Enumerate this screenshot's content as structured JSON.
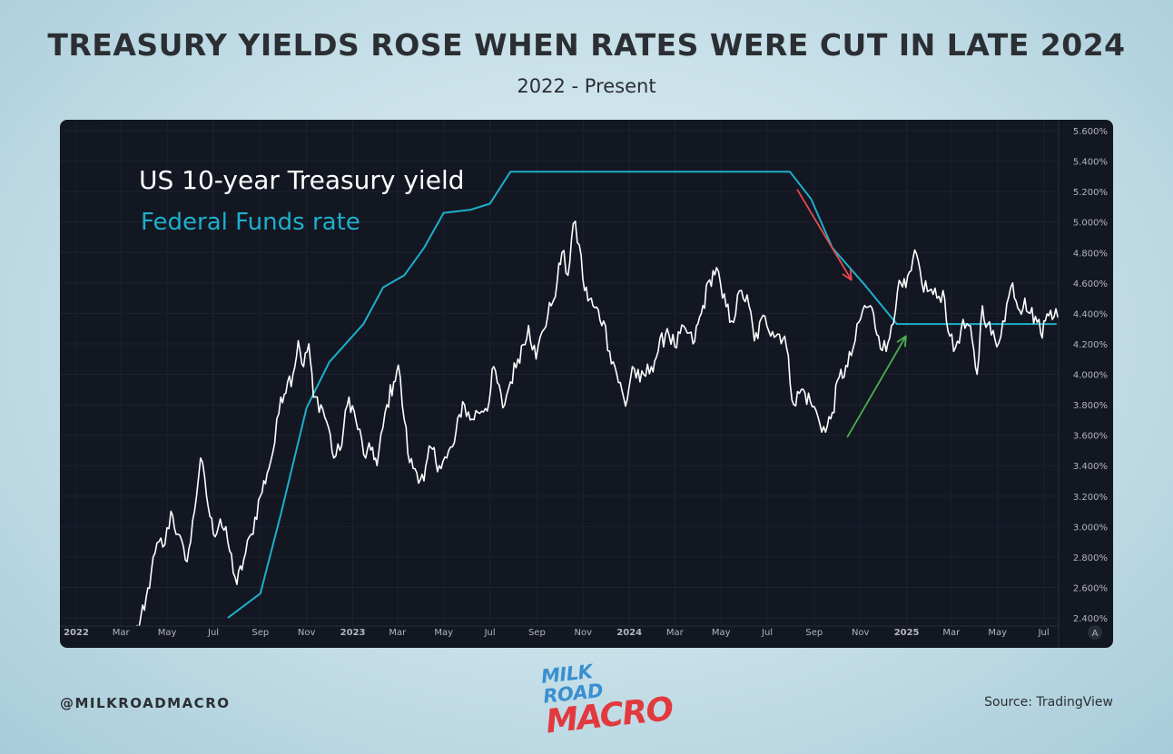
{
  "header": {
    "title": "TREASURY YIELDS ROSE WHEN RATES WERE CUT IN LATE 2024",
    "subtitle": "2022 - Present"
  },
  "footer": {
    "handle": "@MILKROADMACRO",
    "source": "Source: TradingView",
    "logo_top": "MILK ROAD",
    "logo_bottom": "MACRO"
  },
  "colors": {
    "background": "#131722",
    "yield_line": "#ffffff",
    "fed_line": "#1cb0cc",
    "down_arrow": "#e84a4f",
    "up_arrow": "#4caf50",
    "axis_text": "#b2b5be"
  },
  "chart_data": {
    "type": "line",
    "x_range": [
      "2022-01-01",
      "2025-08-10"
    ],
    "ylim": [
      2.4,
      5.6
    ],
    "y_ticks": [
      "5.600%",
      "5.400%",
      "5.200%",
      "5.000%",
      "4.800%",
      "4.600%",
      "4.400%",
      "4.200%",
      "4.000%",
      "3.800%",
      "3.600%",
      "3.400%",
      "3.200%",
      "3.000%",
      "2.800%",
      "2.600%",
      "2.400%"
    ],
    "x_ticks": [
      {
        "label": "2022",
        "date": "2022-01-01"
      },
      {
        "label": "Mar",
        "date": "2022-03-01"
      },
      {
        "label": "May",
        "date": "2022-05-01"
      },
      {
        "label": "Jul",
        "date": "2022-07-01"
      },
      {
        "label": "Sep",
        "date": "2022-09-01"
      },
      {
        "label": "Nov",
        "date": "2022-11-01"
      },
      {
        "label": "2023",
        "date": "2023-01-01"
      },
      {
        "label": "Mar",
        "date": "2023-03-01"
      },
      {
        "label": "May",
        "date": "2023-05-01"
      },
      {
        "label": "Jul",
        "date": "2023-07-01"
      },
      {
        "label": "Sep",
        "date": "2023-09-01"
      },
      {
        "label": "Nov",
        "date": "2023-11-01"
      },
      {
        "label": "2024",
        "date": "2024-01-01"
      },
      {
        "label": "Mar",
        "date": "2024-03-01"
      },
      {
        "label": "May",
        "date": "2024-05-01"
      },
      {
        "label": "Jul",
        "date": "2024-07-01"
      },
      {
        "label": "Sep",
        "date": "2024-09-01"
      },
      {
        "label": "Nov",
        "date": "2024-11-01"
      },
      {
        "label": "2025",
        "date": "2025-01-01"
      },
      {
        "label": "Mar",
        "date": "2025-03-01"
      },
      {
        "label": "May",
        "date": "2025-05-01"
      },
      {
        "label": "Jul",
        "date": "2025-07-01"
      }
    ],
    "grid": true,
    "legend_position": "top-left",
    "corner_badge": "A",
    "series": [
      {
        "name": "US 10-year Treasury yield",
        "color": "#ffffff",
        "points": [
          [
            "2022-03-20",
            2.3
          ],
          [
            "2022-04-01",
            2.45
          ],
          [
            "2022-04-10",
            2.7
          ],
          [
            "2022-04-20",
            2.9
          ],
          [
            "2022-04-28",
            2.88
          ],
          [
            "2022-05-06",
            3.1
          ],
          [
            "2022-05-15",
            2.95
          ],
          [
            "2022-05-25",
            2.78
          ],
          [
            "2022-06-01",
            2.9
          ],
          [
            "2022-06-14",
            3.45
          ],
          [
            "2022-06-22",
            3.2
          ],
          [
            "2022-07-01",
            2.95
          ],
          [
            "2022-07-10",
            3.05
          ],
          [
            "2022-07-20",
            2.9
          ],
          [
            "2022-08-01",
            2.62
          ],
          [
            "2022-08-10",
            2.78
          ],
          [
            "2022-08-20",
            2.95
          ],
          [
            "2022-09-01",
            3.2
          ],
          [
            "2022-09-10",
            3.35
          ],
          [
            "2022-09-20",
            3.55
          ],
          [
            "2022-09-28",
            3.85
          ],
          [
            "2022-10-07",
            3.95
          ],
          [
            "2022-10-14",
            4.0
          ],
          [
            "2022-10-21",
            4.22
          ],
          [
            "2022-10-28",
            4.05
          ],
          [
            "2022-11-04",
            4.2
          ],
          [
            "2022-11-10",
            3.85
          ],
          [
            "2022-11-20",
            3.8
          ],
          [
            "2022-11-30",
            3.65
          ],
          [
            "2022-12-07",
            3.45
          ],
          [
            "2022-12-15",
            3.5
          ],
          [
            "2022-12-27",
            3.85
          ],
          [
            "2023-01-05",
            3.7
          ],
          [
            "2023-01-18",
            3.45
          ],
          [
            "2023-01-27",
            3.52
          ],
          [
            "2023-02-02",
            3.4
          ],
          [
            "2023-02-15",
            3.8
          ],
          [
            "2023-02-24",
            3.95
          ],
          [
            "2023-03-02",
            4.06
          ],
          [
            "2023-03-10",
            3.7
          ],
          [
            "2023-03-17",
            3.42
          ],
          [
            "2023-03-24",
            3.38
          ],
          [
            "2023-04-05",
            3.3
          ],
          [
            "2023-04-14",
            3.52
          ],
          [
            "2023-04-25",
            3.4
          ],
          [
            "2023-05-05",
            3.45
          ],
          [
            "2023-05-15",
            3.55
          ],
          [
            "2023-05-26",
            3.82
          ],
          [
            "2023-06-05",
            3.7
          ],
          [
            "2023-06-15",
            3.75
          ],
          [
            "2023-06-30",
            3.82
          ],
          [
            "2023-07-06",
            4.05
          ],
          [
            "2023-07-18",
            3.78
          ],
          [
            "2023-07-28",
            3.95
          ],
          [
            "2023-08-07",
            4.1
          ],
          [
            "2023-08-21",
            4.32
          ],
          [
            "2023-08-31",
            4.1
          ],
          [
            "2023-09-08",
            4.28
          ],
          [
            "2023-09-20",
            4.45
          ],
          [
            "2023-09-28",
            4.62
          ],
          [
            "2023-10-04",
            4.8
          ],
          [
            "2023-10-12",
            4.65
          ],
          [
            "2023-10-19",
            4.99
          ],
          [
            "2023-10-27",
            4.85
          ],
          [
            "2023-11-03",
            4.55
          ],
          [
            "2023-11-14",
            4.45
          ],
          [
            "2023-11-28",
            4.35
          ],
          [
            "2023-12-06",
            4.15
          ],
          [
            "2023-12-13",
            4.05
          ],
          [
            "2023-12-27",
            3.79
          ],
          [
            "2024-01-05",
            4.05
          ],
          [
            "2024-01-15",
            3.95
          ],
          [
            "2024-01-30",
            4.05
          ],
          [
            "2024-02-08",
            4.15
          ],
          [
            "2024-02-20",
            4.3
          ],
          [
            "2024-03-01",
            4.18
          ],
          [
            "2024-03-15",
            4.3
          ],
          [
            "2024-03-25",
            4.2
          ],
          [
            "2024-04-05",
            4.4
          ],
          [
            "2024-04-16",
            4.62
          ],
          [
            "2024-04-25",
            4.7
          ],
          [
            "2024-05-03",
            4.5
          ],
          [
            "2024-05-15",
            4.35
          ],
          [
            "2024-05-28",
            4.55
          ],
          [
            "2024-06-07",
            4.45
          ],
          [
            "2024-06-14",
            4.22
          ],
          [
            "2024-06-28",
            4.38
          ],
          [
            "2024-07-08",
            4.28
          ],
          [
            "2024-07-24",
            4.25
          ],
          [
            "2024-08-05",
            3.8
          ],
          [
            "2024-08-15",
            3.9
          ],
          [
            "2024-08-27",
            3.82
          ],
          [
            "2024-09-06",
            3.72
          ],
          [
            "2024-09-16",
            3.62
          ],
          [
            "2024-09-25",
            3.75
          ],
          [
            "2024-10-04",
            3.98
          ],
          [
            "2024-10-15",
            4.05
          ],
          [
            "2024-10-25",
            4.22
          ],
          [
            "2024-11-04",
            4.42
          ],
          [
            "2024-11-14",
            4.45
          ],
          [
            "2024-11-25",
            4.25
          ],
          [
            "2024-12-05",
            4.15
          ],
          [
            "2024-12-12",
            4.32
          ],
          [
            "2024-12-20",
            4.55
          ],
          [
            "2024-12-31",
            4.57
          ],
          [
            "2025-01-07",
            4.68
          ],
          [
            "2025-01-14",
            4.79
          ],
          [
            "2025-01-21",
            4.6
          ],
          [
            "2025-01-31",
            4.55
          ],
          [
            "2025-02-10",
            4.5
          ],
          [
            "2025-02-18",
            4.55
          ],
          [
            "2025-02-27",
            4.25
          ],
          [
            "2025-03-04",
            4.15
          ],
          [
            "2025-03-14",
            4.3
          ],
          [
            "2025-03-24",
            4.32
          ],
          [
            "2025-04-04",
            4.0
          ],
          [
            "2025-04-11",
            4.45
          ],
          [
            "2025-04-18",
            4.33
          ],
          [
            "2025-04-30",
            4.18
          ],
          [
            "2025-05-08",
            4.35
          ],
          [
            "2025-05-21",
            4.6
          ],
          [
            "2025-05-30",
            4.42
          ],
          [
            "2025-06-06",
            4.5
          ],
          [
            "2025-06-13",
            4.4
          ],
          [
            "2025-06-20",
            4.38
          ],
          [
            "2025-06-27",
            4.27
          ],
          [
            "2025-07-03",
            4.35
          ],
          [
            "2025-07-10",
            4.42
          ],
          [
            "2025-07-17",
            4.43
          ],
          [
            "2025-07-22",
            4.4
          ]
        ]
      },
      {
        "name": "Federal Funds rate",
        "color": "#1cb0cc",
        "points": [
          [
            "2022-07-20",
            2.4
          ],
          [
            "2022-09-01",
            2.56
          ],
          [
            "2022-09-28",
            3.08
          ],
          [
            "2022-11-01",
            3.78
          ],
          [
            "2022-12-01",
            4.08
          ],
          [
            "2023-01-15",
            4.33
          ],
          [
            "2023-02-10",
            4.57
          ],
          [
            "2023-03-10",
            4.65
          ],
          [
            "2023-04-05",
            4.83
          ],
          [
            "2023-05-01",
            5.06
          ],
          [
            "2023-06-05",
            5.08
          ],
          [
            "2023-07-01",
            5.12
          ],
          [
            "2023-07-28",
            5.33
          ],
          [
            "2024-07-31",
            5.33
          ],
          [
            "2024-08-28",
            5.15
          ],
          [
            "2024-09-25",
            4.83
          ],
          [
            "2024-11-08",
            4.58
          ],
          [
            "2024-12-19",
            4.33
          ],
          [
            "2025-07-18",
            4.33
          ]
        ]
      }
    ],
    "annotations": [
      {
        "type": "arrow",
        "color": "#e84a4f",
        "from": [
          "2024-08-10",
          5.21
        ],
        "to": [
          "2024-10-20",
          4.62
        ]
      },
      {
        "type": "arrow",
        "color": "#4caf50",
        "from": [
          "2024-10-15",
          3.59
        ],
        "to": [
          "2024-12-31",
          4.25
        ]
      }
    ]
  }
}
